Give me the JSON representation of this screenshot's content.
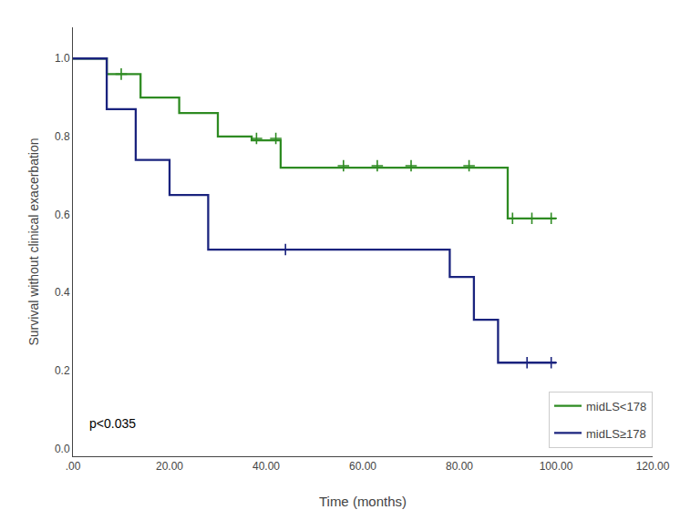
{
  "chart_data": {
    "type": "step",
    "xlabel": "Time (months)",
    "ylabel": "Survival without clinical exacerbation",
    "series": [
      {
        "name": "midLS<178",
        "color": "#2E8B22",
        "x": [
          0,
          7,
          7,
          14,
          14,
          22,
          22,
          30,
          30,
          37,
          37,
          43,
          43,
          67,
          67,
          90,
          90,
          100
        ],
        "values": [
          1.0,
          1.0,
          0.96,
          0.96,
          0.9,
          0.9,
          0.86,
          0.86,
          0.8,
          0.8,
          0.79,
          0.79,
          0.72,
          0.72,
          0.72,
          0.72,
          0.59,
          0.59
        ],
        "censors": {
          "marker": "cross",
          "x": [
            10,
            38,
            42,
            56,
            63,
            70,
            82,
            91,
            95,
            99
          ],
          "y": [
            0.96,
            0.795,
            0.795,
            0.725,
            0.725,
            0.725,
            0.725,
            0.59,
            0.59,
            0.59
          ]
        }
      },
      {
        "name": "midLS≥178",
        "color": "#1A237E",
        "x": [
          0,
          7,
          7,
          13,
          13,
          20,
          20,
          28,
          28,
          43,
          43,
          78,
          78,
          83,
          83,
          88,
          88,
          93,
          93,
          100
        ],
        "values": [
          1.0,
          1.0,
          0.87,
          0.87,
          0.74,
          0.74,
          0.65,
          0.65,
          0.51,
          0.51,
          0.51,
          0.51,
          0.44,
          0.44,
          0.33,
          0.33,
          0.22,
          0.22,
          0.22,
          0.22
        ],
        "censors": {
          "marker": "cross",
          "x": [
            44,
            94,
            99
          ],
          "y": [
            0.51,
            0.22,
            0.22
          ]
        }
      }
    ],
    "annotations": [
      {
        "text": "p<0.035",
        "x": 3,
        "y": 0.04
      }
    ],
    "xlim": [
      0,
      120
    ],
    "xticks": [
      {
        "value": 0,
        "label": ".00"
      },
      {
        "value": 20,
        "label": "20.00"
      },
      {
        "value": 40,
        "label": "40.00"
      },
      {
        "value": 60,
        "label": "60.00"
      },
      {
        "value": 80,
        "label": "80.00"
      },
      {
        "value": 100,
        "label": "100.00"
      },
      {
        "value": 120,
        "label": "120.00"
      }
    ],
    "ylim": [
      -0.02,
      1.08
    ],
    "yticks": [
      {
        "value": 0.0,
        "label": "0.0"
      },
      0.2,
      0.4,
      0.6,
      0.8,
      {
        "value": 1.0,
        "label": "1.0"
      }
    ],
    "legend": "lower right",
    "grid": false
  }
}
